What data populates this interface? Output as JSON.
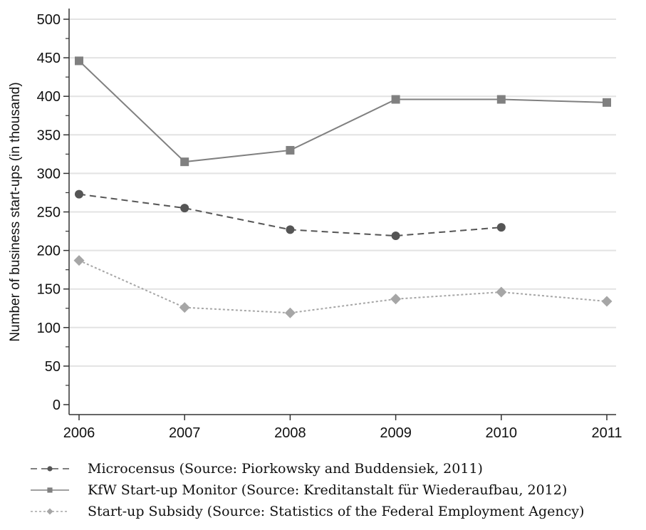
{
  "chart_data": {
    "type": "line",
    "title": "",
    "xlabel": "",
    "ylabel": "Number of business start-ups (in thousand)",
    "x": [
      2006,
      2007,
      2008,
      2009,
      2010,
      2011
    ],
    "xlim": [
      2006,
      2011
    ],
    "ylim": [
      0,
      500
    ],
    "yticks": [
      0,
      50,
      100,
      150,
      200,
      250,
      300,
      350,
      400,
      450,
      500
    ],
    "grid": "horizontal",
    "legend_position": "bottom",
    "series": [
      {
        "name": "Microcensus (Source: Piorkowsky and Buddensiek, 2011)",
        "values": [
          273,
          255,
          227,
          219,
          230,
          null
        ],
        "marker": "circle",
        "dash": "dashed",
        "color": "#555555"
      },
      {
        "name": "KfW Start-up Monitor (Source: Kreditanstalt für Wiederaufbau, 2012)",
        "values": [
          446,
          315,
          330,
          396,
          396,
          392
        ],
        "marker": "square",
        "dash": "solid",
        "color": "#808080"
      },
      {
        "name": "Start-up Subsidy (Source: Statistics of the Federal Employment Agency)",
        "values": [
          187,
          126,
          119,
          137,
          146,
          134
        ],
        "marker": "diamond",
        "dash": "dotted",
        "color": "#a6a6a6"
      }
    ]
  }
}
